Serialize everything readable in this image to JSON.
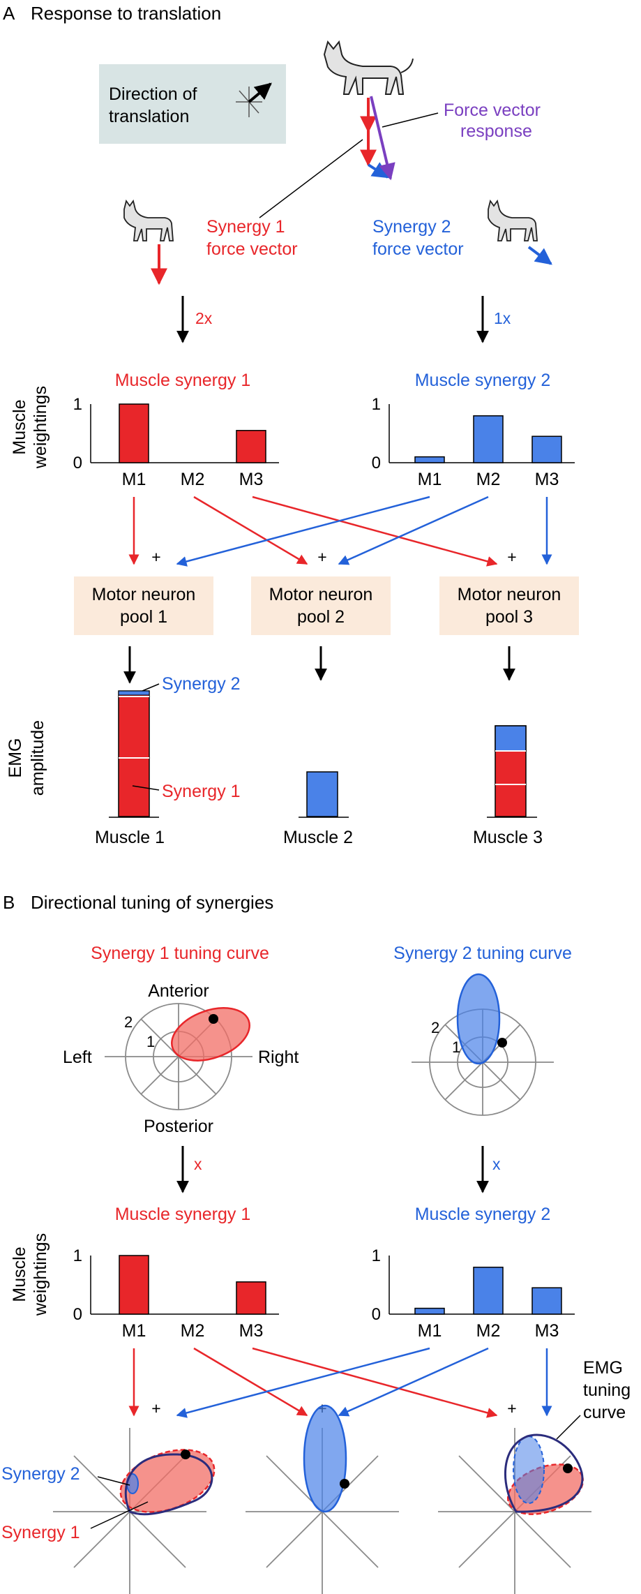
{
  "colors": {
    "red": "#e8262a",
    "red_fill": "#f26d66",
    "blue": "#2361d9",
    "blue_fill": "#4a82e8",
    "purple": "#7a3fc0",
    "navy": "#2b2c7c",
    "box_peach": "#fbeadb",
    "box_teal": "#d8e4e4",
    "black": "#000000",
    "gray": "#8a8a8a"
  },
  "panelA": {
    "label": "A",
    "title": "Response to translation",
    "direction_box": [
      "Direction of",
      "translation"
    ],
    "force_vector_response": [
      "Force vector",
      "response"
    ],
    "synergy1_force": [
      "Synergy 1",
      "force vector"
    ],
    "synergy2_force": [
      "Synergy 2",
      "force vector"
    ],
    "scale1": "2x",
    "scale2": "1x",
    "muscle_synergy1": "Muscle synergy 1",
    "muscle_synergy2": "Muscle synergy 2",
    "ylabel": [
      "Muscle",
      "weightings"
    ],
    "ytick_top": "1",
    "ytick_bottom": "0",
    "muscles": [
      "M1",
      "M2",
      "M3"
    ],
    "plus": "+",
    "pools": [
      [
        "Motor neuron",
        "pool 1"
      ],
      [
        "Motor neuron",
        "pool 2"
      ],
      [
        "Motor neuron",
        "pool 3"
      ]
    ],
    "emg_ylabel": [
      "EMG",
      "amplitude"
    ],
    "synergy2_label": "Synergy 2",
    "synergy1_label": "Synergy 1",
    "muscle_names": [
      "Muscle 1",
      "Muscle 2",
      "Muscle 3"
    ]
  },
  "panelB": {
    "label": "B",
    "title": "Directional tuning of synergies",
    "tuning1_title": "Synergy 1 tuning curve",
    "tuning2_title": "Synergy 2 tuning curve",
    "anterior": "Anterior",
    "posterior": "Posterior",
    "left": "Left",
    "right": "Right",
    "ring1": "1",
    "ring2": "2",
    "scale1": "x",
    "scale2": "x",
    "muscle_synergy1": "Muscle synergy 1",
    "muscle_synergy2": "Muscle synergy 2",
    "ylabel": [
      "Muscle",
      "weightings"
    ],
    "ytick_top": "1",
    "ytick_bottom": "0",
    "muscles": [
      "M1",
      "M2",
      "M3"
    ],
    "plus": "+",
    "emg_tuning": [
      "EMG",
      "tuning",
      "curve"
    ],
    "synergy2_label": "Synergy 2",
    "synergy1_label": "Synergy 1"
  },
  "chart_data": [
    {
      "type": "bar",
      "title": "Muscle synergy 1",
      "categories": [
        "M1",
        "M2",
        "M3"
      ],
      "values": [
        1.0,
        0,
        0.55
      ],
      "ylim": [
        0,
        1
      ]
    },
    {
      "type": "bar",
      "title": "Muscle synergy 2",
      "categories": [
        "M1",
        "M2",
        "M3"
      ],
      "values": [
        0.1,
        0.8,
        0.45
      ],
      "ylim": [
        0,
        1
      ]
    }
  ]
}
